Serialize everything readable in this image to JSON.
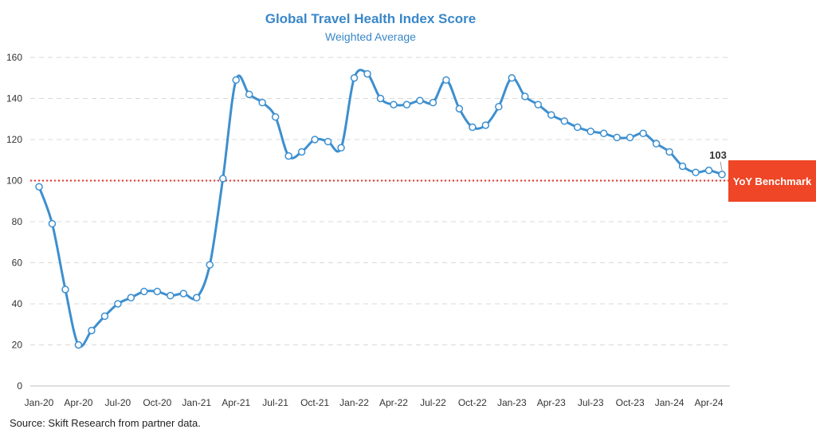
{
  "chart_data": {
    "type": "line",
    "title": "Global Travel Health Index Score",
    "subtitle": "Weighted Average",
    "ylim": [
      0,
      160
    ],
    "yticks": [
      0,
      20,
      40,
      60,
      80,
      100,
      120,
      140,
      160
    ],
    "grid": true,
    "xtick_labels": [
      "Jan-20",
      "Apr-20",
      "Jul-20",
      "Oct-20",
      "Jan-21",
      "Apr-21",
      "Jul-21",
      "Oct-21",
      "Jan-22",
      "Apr-22",
      "Jul-22",
      "Oct-22",
      "Jan-23",
      "Apr-23",
      "Jul-23",
      "Oct-23",
      "Jan-24",
      "Apr-24"
    ],
    "x": [
      "Jan-20",
      "Feb-20",
      "Mar-20",
      "Apr-20",
      "May-20",
      "Jun-20",
      "Jul-20",
      "Aug-20",
      "Sep-20",
      "Oct-20",
      "Nov-20",
      "Dec-20",
      "Jan-21",
      "Feb-21",
      "Mar-21",
      "Apr-21",
      "May-21",
      "Jun-21",
      "Jul-21",
      "Aug-21",
      "Sep-21",
      "Oct-21",
      "Nov-21",
      "Dec-21",
      "Jan-22",
      "Feb-22",
      "Mar-22",
      "Apr-22",
      "May-22",
      "Jun-22",
      "Jul-22",
      "Aug-22",
      "Sep-22",
      "Oct-22",
      "Nov-22",
      "Dec-22",
      "Jan-23",
      "Feb-23",
      "Mar-23",
      "Apr-23",
      "May-23",
      "Jun-23",
      "Jul-23",
      "Aug-23",
      "Sep-23",
      "Oct-23",
      "Nov-23",
      "Dec-23",
      "Jan-24",
      "Feb-24",
      "Mar-24",
      "Apr-24",
      "May-24"
    ],
    "series": [
      {
        "values": [
          97,
          79,
          47,
          20,
          27,
          34,
          40,
          43,
          46,
          46,
          44,
          45,
          43,
          59,
          101,
          149,
          142,
          138,
          131,
          112,
          114,
          120,
          119,
          116,
          150,
          152,
          140,
          137,
          137,
          139,
          138,
          149,
          135,
          126,
          127,
          136,
          150,
          141,
          137,
          132,
          129,
          126,
          124,
          123,
          121,
          121,
          123,
          118,
          114,
          107,
          104,
          105,
          103
        ]
      }
    ],
    "reference_line": {
      "value": 100,
      "label": "YoY Benchmark"
    },
    "last_value_label": "103",
    "source": "Source: Skift Research from partner data.",
    "colors": {
      "series": "#3d8fcf",
      "title": "#3a87c8",
      "reference": "#e5312a",
      "badge": "#ee4626",
      "grid": "#d9d9d9"
    }
  }
}
